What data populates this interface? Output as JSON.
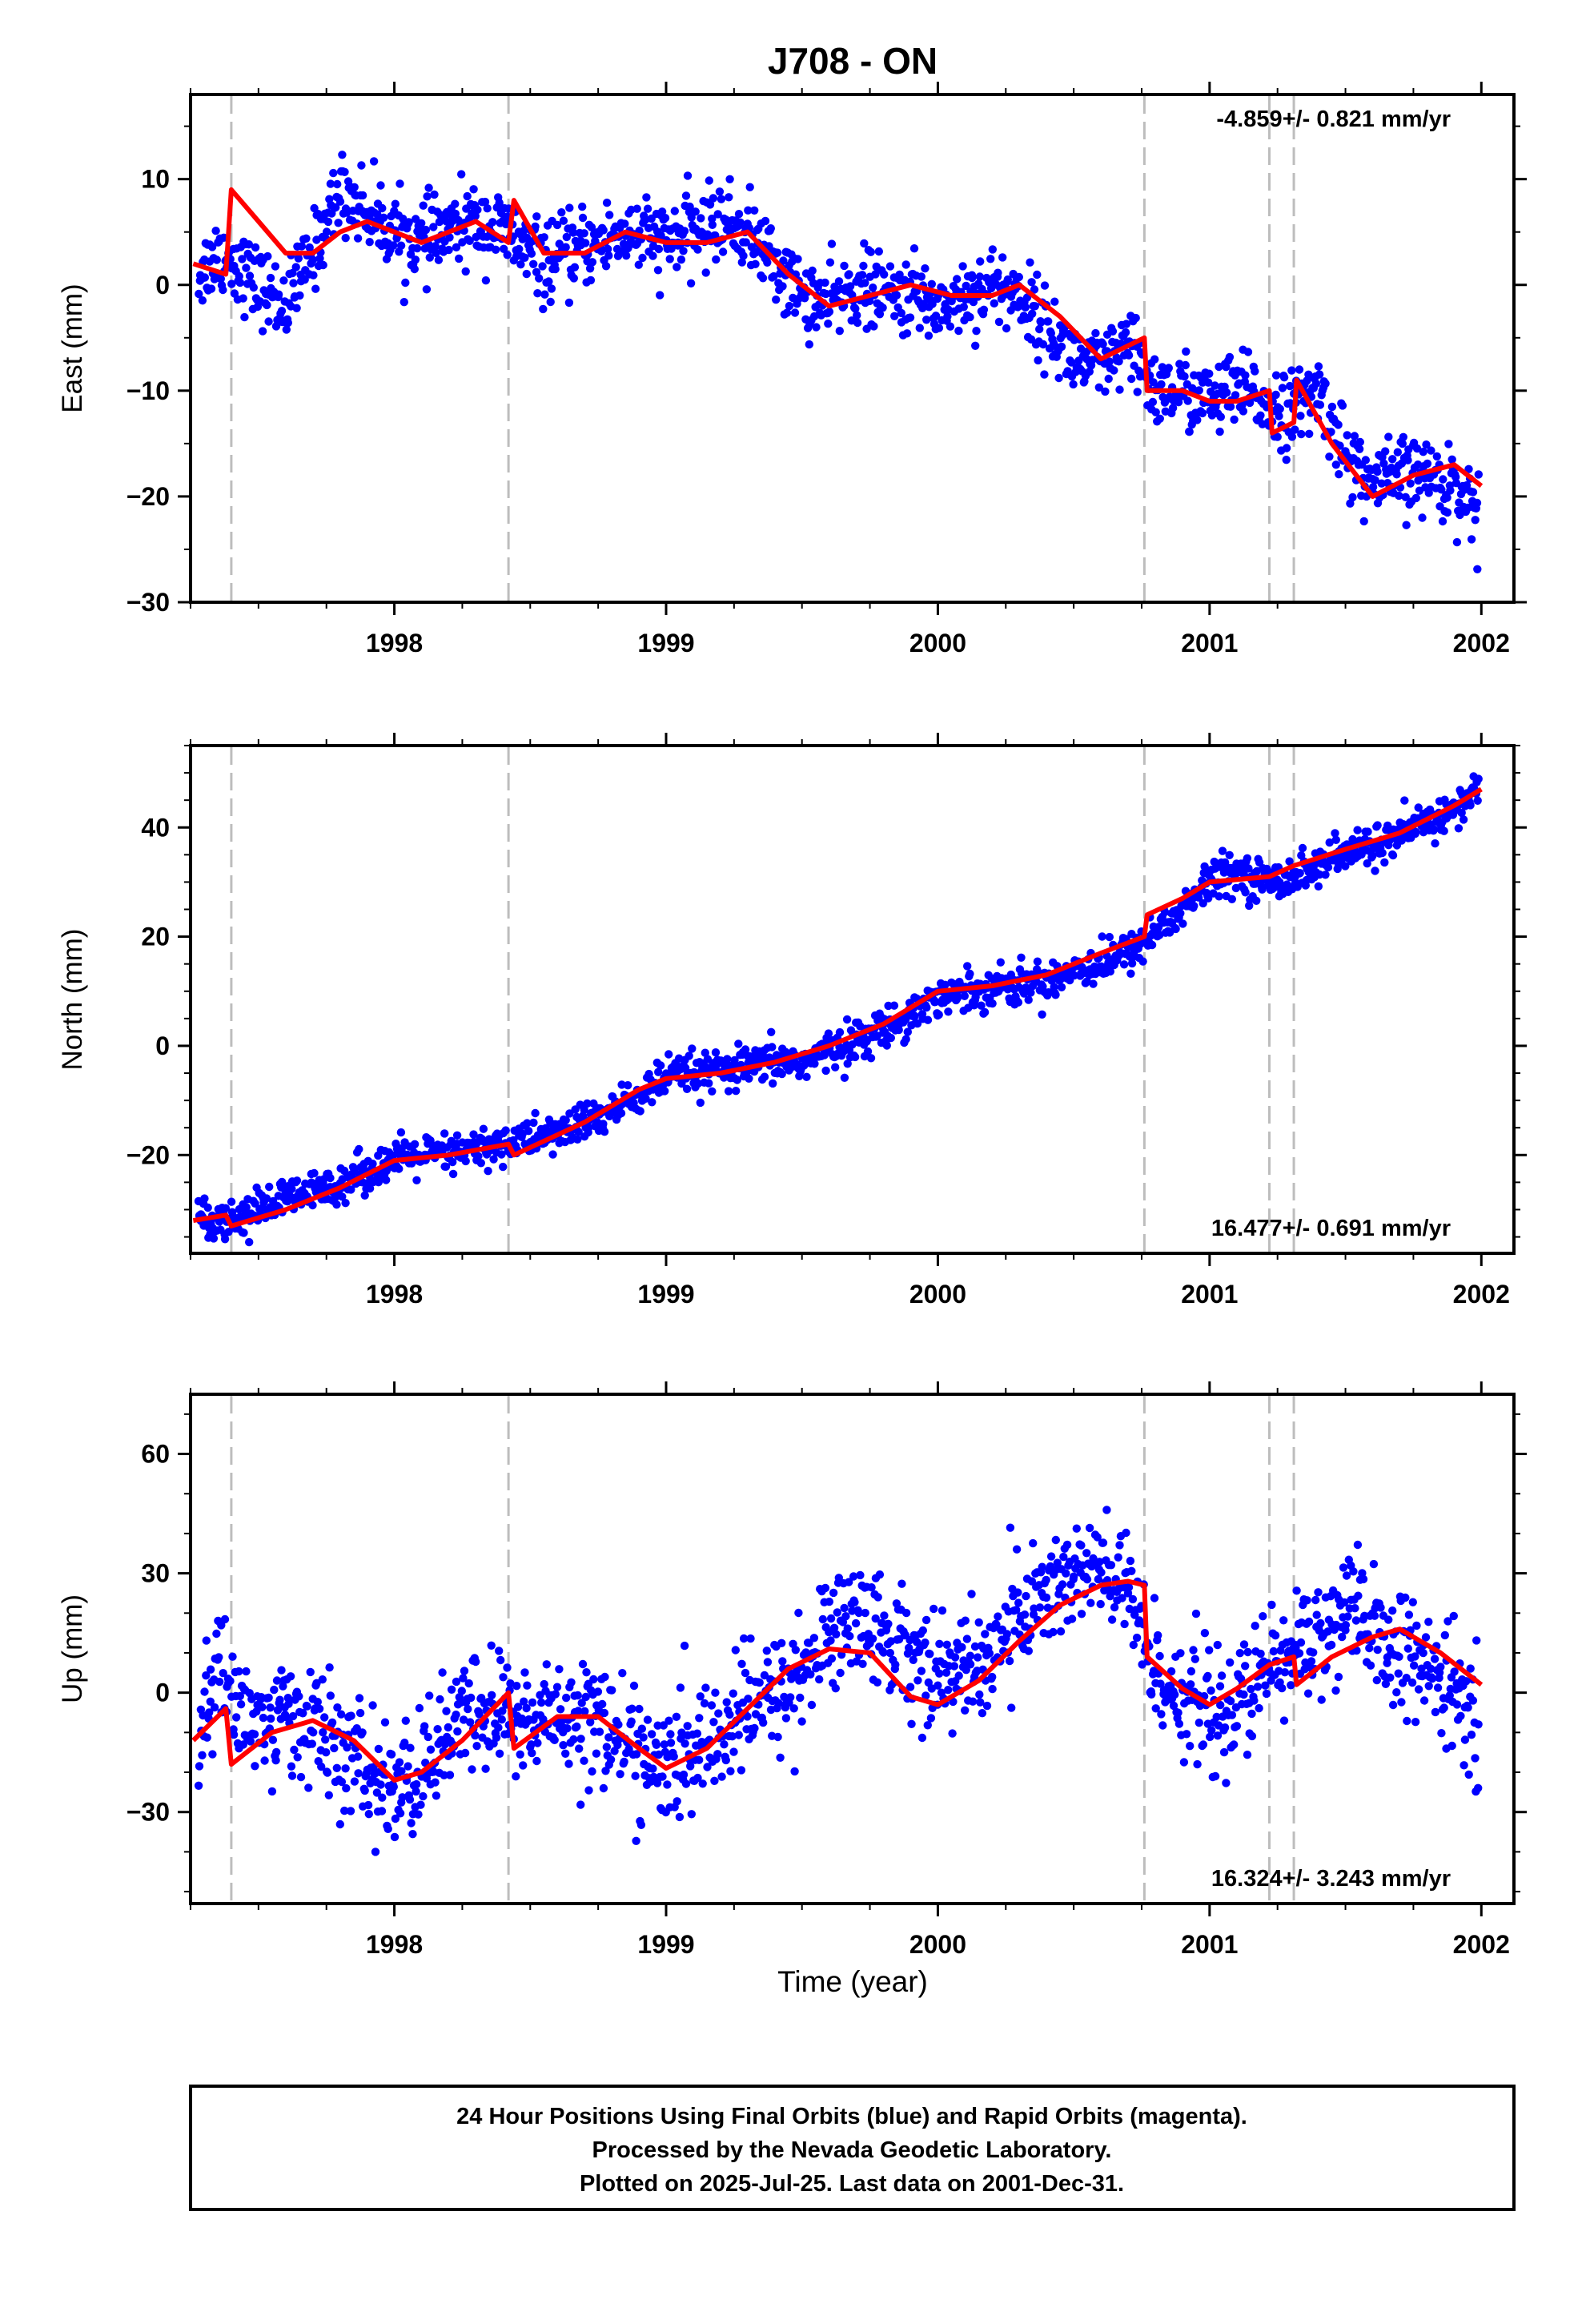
{
  "title": "J708 - ON",
  "colors": {
    "final_points": "#0000ff",
    "model_line": "#ff0000",
    "event_lines": "#bdbdbd",
    "frame": "#000000"
  },
  "xaxis": {
    "label": "Time (year)",
    "range": [
      1997.25,
      2002.12
    ],
    "ticks": [
      "1998",
      "1999",
      "2000",
      "2001",
      "2002"
    ]
  },
  "events": [
    1997.4,
    1998.42,
    2000.76,
    2001.22,
    2001.31
  ],
  "panels": [
    {
      "ylabel": "East (mm)",
      "ylim": [
        -30,
        18
      ],
      "yticks": [
        "10",
        "0",
        "−10",
        "−20",
        "−30"
      ],
      "rate": "-4.859+/- 0.821 mm/yr",
      "rate_pos": "top-right"
    },
    {
      "ylabel": "North (mm)",
      "ylim": [
        -38,
        55
      ],
      "yticks": [
        "40",
        "20",
        "0",
        "−20"
      ],
      "rate": "16.477+/- 0.691 mm/yr",
      "rate_pos": "bottom-right"
    },
    {
      "ylabel": "Up (mm)",
      "ylim": [
        -53,
        75
      ],
      "yticks": [
        "60",
        "30",
        "0",
        "−30"
      ],
      "rate": "16.324+/- 3.243 mm/yr",
      "rate_pos": "bottom-right"
    }
  ],
  "chart_data": [
    {
      "type": "scatter",
      "title": "J708 - ON",
      "xlabel": "Time (year)",
      "ylabel": "East (mm)",
      "xlim": [
        1997.25,
        2002.12
      ],
      "ylim": [
        -30,
        18
      ],
      "grid": false,
      "annotation": "-4.859+/- 0.821 mm/yr",
      "series": [
        {
          "name": "Final Orbits",
          "x": [
            1997.28,
            1997.35,
            1997.42,
            1997.5,
            1997.6,
            1997.7,
            1997.8,
            1997.9,
            1998.0,
            1998.1,
            1998.2,
            1998.3,
            1998.4,
            1998.45,
            1998.55,
            1998.65,
            1998.75,
            1998.85,
            1999.0,
            1999.1,
            1999.2,
            1999.3,
            1999.4,
            1999.5,
            1999.6,
            1999.7,
            1999.8,
            1999.9,
            2000.0,
            2000.1,
            2000.2,
            2000.3,
            2000.4,
            2000.5,
            2000.6,
            2000.7,
            2000.8,
            2000.9,
            2001.0,
            2001.1,
            2001.2,
            2001.3,
            2001.4,
            2001.5,
            2001.6,
            2001.7,
            2001.8,
            2001.9,
            2001.99
          ],
          "y": [
            1,
            3,
            2,
            0,
            -2,
            3,
            9,
            7,
            5,
            4,
            5,
            6,
            5,
            4,
            2,
            3,
            4,
            5,
            4,
            5,
            6,
            5,
            2,
            -1,
            -2,
            0,
            -1,
            -1,
            -2,
            -1,
            0,
            -1,
            -4,
            -7,
            -8,
            -6,
            -10,
            -10,
            -11,
            -10,
            -11,
            -12,
            -10,
            -16,
            -19,
            -18,
            -18,
            -19,
            -21
          ]
        },
        {
          "name": "Model",
          "x": [
            1997.26,
            1997.38,
            1997.4,
            1997.5,
            1997.6,
            1997.7,
            1997.8,
            1997.9,
            1998.0,
            1998.1,
            1998.2,
            1998.3,
            1998.42,
            1998.44,
            1998.55,
            1998.7,
            1998.85,
            1999.0,
            1999.15,
            1999.3,
            1999.45,
            1999.6,
            1999.75,
            1999.9,
            2000.05,
            2000.2,
            2000.3,
            2000.45,
            2000.6,
            2000.76,
            2000.77,
            2000.9,
            2001.0,
            2001.1,
            2001.22,
            2001.23,
            2001.31,
            2001.32,
            2001.45,
            2001.6,
            2001.75,
            2001.9,
            2002.0
          ],
          "y": [
            2,
            1,
            9,
            6,
            3,
            3,
            5,
            6,
            5,
            4,
            5,
            6,
            4,
            8,
            3,
            3,
            5,
            4,
            4,
            5,
            1,
            -2,
            -1,
            0,
            -1,
            -1,
            0,
            -3,
            -7,
            -5,
            -10,
            -10,
            -11,
            -11,
            -10,
            -14,
            -13,
            -9,
            -15,
            -20,
            -18,
            -17,
            -19
          ]
        }
      ]
    },
    {
      "type": "scatter",
      "xlabel": "Time (year)",
      "ylabel": "North (mm)",
      "xlim": [
        1997.25,
        2002.12
      ],
      "ylim": [
        -38,
        55
      ],
      "grid": false,
      "annotation": "16.477+/- 0.691 mm/yr",
      "series": [
        {
          "name": "Final Orbits",
          "x": [
            1997.28,
            1997.4,
            1997.5,
            1997.6,
            1997.7,
            1997.8,
            1997.9,
            1998.0,
            1998.1,
            1998.2,
            1998.3,
            1998.4,
            1998.5,
            1998.6,
            1998.7,
            1998.8,
            1998.9,
            1999.0,
            1999.1,
            1999.2,
            1999.3,
            1999.4,
            1999.5,
            1999.6,
            1999.7,
            1999.8,
            1999.9,
            2000.0,
            2000.1,
            2000.2,
            2000.3,
            2000.4,
            2000.5,
            2000.6,
            2000.7,
            2000.8,
            2000.9,
            2001.0,
            2001.1,
            2001.2,
            2001.3,
            2001.4,
            2001.5,
            2001.6,
            2001.7,
            2001.8,
            2001.9,
            2001.99
          ],
          "y": [
            -31,
            -32,
            -30,
            -28,
            -27,
            -25,
            -23,
            -21,
            -20,
            -20,
            -19,
            -18,
            -17,
            -16,
            -14,
            -12,
            -9,
            -6,
            -5,
            -5,
            -4,
            -3,
            -3,
            -1,
            1,
            3,
            6,
            9,
            10,
            11,
            11,
            12,
            14,
            15,
            17,
            21,
            25,
            30,
            32,
            30,
            31,
            33,
            35,
            37,
            38,
            41,
            43,
            47
          ]
        },
        {
          "name": "Model",
          "x": [
            1997.26,
            1997.38,
            1997.4,
            1997.6,
            1997.8,
            1998.0,
            1998.2,
            1998.42,
            1998.44,
            1998.7,
            1998.9,
            1999.0,
            1999.2,
            1999.4,
            1999.6,
            1999.8,
            2000.0,
            2000.2,
            2000.4,
            2000.6,
            2000.76,
            2000.77,
            2000.9,
            2001.0,
            2001.22,
            2001.31,
            2001.5,
            2001.7,
            2001.9,
            2002.0
          ],
          "y": [
            -32,
            -31,
            -33,
            -30,
            -26,
            -21,
            -20,
            -18,
            -20,
            -14,
            -8,
            -6,
            -5,
            -3,
            0,
            4,
            10,
            11,
            13,
            17,
            20,
            24,
            27,
            30,
            31,
            33,
            36,
            39,
            44,
            47
          ]
        }
      ]
    },
    {
      "type": "scatter",
      "xlabel": "Time (year)",
      "ylabel": "Up (mm)",
      "xlim": [
        1997.25,
        2002.12
      ],
      "ylim": [
        -53,
        75
      ],
      "grid": false,
      "annotation": "16.324+/- 3.243 mm/yr",
      "series": [
        {
          "name": "Final Orbits",
          "x": [
            1997.28,
            1997.35,
            1997.42,
            1997.5,
            1997.6,
            1997.7,
            1997.8,
            1997.9,
            1998.0,
            1998.1,
            1998.2,
            1998.3,
            1998.4,
            1998.5,
            1998.6,
            1998.7,
            1998.8,
            1998.9,
            1999.0,
            1999.1,
            1999.2,
            1999.3,
            1999.4,
            1999.5,
            1999.6,
            1999.7,
            1999.8,
            1999.9,
            2000.0,
            2000.1,
            2000.2,
            2000.3,
            2000.4,
            2000.5,
            2000.6,
            2000.7,
            2000.8,
            2000.9,
            2001.0,
            2001.1,
            2001.2,
            2001.3,
            2001.4,
            2001.5,
            2001.6,
            2001.7,
            2001.8,
            2001.9,
            2001.99
          ],
          "y": [
            -10,
            5,
            0,
            -10,
            -5,
            -8,
            -15,
            -20,
            -25,
            -20,
            -10,
            -5,
            -5,
            -8,
            -5,
            -5,
            -10,
            -15,
            -20,
            -15,
            -10,
            -5,
            0,
            5,
            15,
            20,
            15,
            10,
            5,
            5,
            10,
            20,
            25,
            30,
            30,
            25,
            5,
            0,
            -5,
            -5,
            5,
            10,
            15,
            20,
            15,
            10,
            5,
            0,
            -5
          ]
        },
        {
          "name": "Model",
          "x": [
            1997.26,
            1997.38,
            1997.4,
            1997.55,
            1997.7,
            1997.85,
            1998.0,
            1998.1,
            1998.25,
            1998.42,
            1998.44,
            1998.6,
            1998.75,
            1998.9,
            1999.0,
            1999.15,
            1999.3,
            1999.45,
            1999.6,
            1999.75,
            1999.9,
            2000.0,
            2000.15,
            2000.3,
            2000.45,
            2000.6,
            2000.7,
            2000.76,
            2000.77,
            2000.9,
            2001.0,
            2001.1,
            2001.22,
            2001.31,
            2001.32,
            2001.45,
            2001.6,
            2001.7,
            2001.85,
            2002.0
          ],
          "y": [
            -12,
            -4,
            -18,
            -10,
            -7,
            -12,
            -22,
            -20,
            -12,
            0,
            -14,
            -6,
            -6,
            -14,
            -19,
            -14,
            -4,
            6,
            11,
            10,
            -1,
            -3,
            3,
            13,
            22,
            27,
            28,
            27,
            9,
            1,
            -3,
            1,
            7,
            9,
            2,
            9,
            14,
            16,
            10,
            2
          ]
        }
      ]
    }
  ],
  "footer": {
    "line1": "24 Hour Positions Using Final Orbits (blue) and Rapid Orbits (magenta).",
    "line2": "Processed by the Nevada Geodetic Laboratory.",
    "line3": "Plotted on 2025-Jul-25. Last data on 2001-Dec-31."
  }
}
